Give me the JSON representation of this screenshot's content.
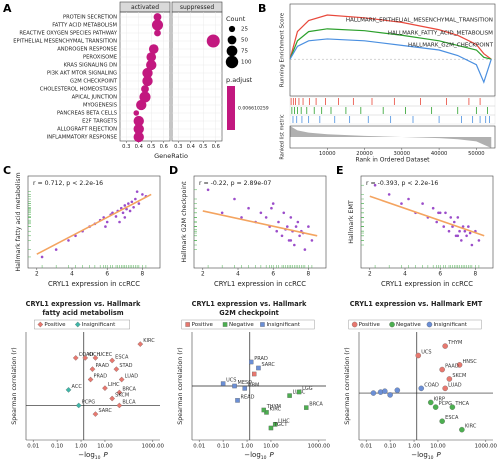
{
  "chart_data": [
    {
      "type": "dot",
      "panel": "A",
      "categories": [
        "PROTEIN SECRETION",
        "FATTY ACID METABOLISM",
        "REACTIVE OXYGEN SPECIES PATHWAY",
        "EPITHELIAL MESENCHYMAL TRANSITION",
        "ANDROGEN RESPONSE",
        "PEROXISOME",
        "KRAS SIGNALING DN",
        "PI3K AKT MTOR SIGNALING",
        "G2M CHECKPOINT",
        "CHOLESTEROL HOMEOSTASIS",
        "APICAL JUNCTION",
        "MYOGENESIS",
        "PANCREAS BETA CELLS",
        "E2F TARGETS",
        "ALLOGRAFT REJECTION",
        "INFLAMMATORY RESPONSE"
      ],
      "series": [
        {
          "name": "activated",
          "values": [
            0.55,
            0.55,
            0.55,
            null,
            0.52,
            0.5,
            0.5,
            0.47,
            0.47,
            0.45,
            0.45,
            0.42,
            0.38,
            0.4,
            0.4,
            0.4
          ],
          "counts": [
            40,
            80,
            30,
            null,
            60,
            60,
            70,
            70,
            70,
            40,
            80,
            70,
            20,
            70,
            70,
            70
          ]
        },
        {
          "name": "suppressed",
          "values": [
            null,
            null,
            null,
            0.58,
            null,
            null,
            null,
            null,
            null,
            null,
            null,
            null,
            null,
            null,
            null,
            null
          ],
          "counts": [
            null,
            null,
            null,
            110,
            null,
            null,
            null,
            null,
            null,
            null,
            null,
            null,
            null,
            null,
            null,
            null
          ]
        }
      ],
      "color": "#c2187f",
      "xlabel": "GeneRatio",
      "xlim": [
        0.25,
        0.65
      ],
      "xticks": [
        0.3,
        0.4,
        0.5,
        0.6
      ],
      "size_legend": {
        "title": "Count",
        "values": [
          25,
          50,
          75,
          100
        ]
      },
      "color_legend": {
        "title": "p.adjust",
        "values": [
          0.006610259
        ]
      }
    },
    {
      "type": "gsea",
      "panel": "B",
      "ylabel": "Running Enrichment Score",
      "ylabel2": "Ranked list metric",
      "xlabel": "Rank in Ordered Dataset",
      "x": [
        0,
        2000,
        5000,
        10000,
        20000,
        30000,
        40000,
        45000,
        50000,
        52000,
        54000
      ],
      "xlim": [
        0,
        55000
      ],
      "xticks": [
        10000,
        20000,
        30000,
        40000,
        50000
      ],
      "ylim": [
        -0.4,
        0.6
      ],
      "series": [
        {
          "name": "HALLMARK_EPITHELIAL_MESENCHYMAL_TRANSITION",
          "color": "#e8483b",
          "values": [
            0,
            0.3,
            0.42,
            0.48,
            0.45,
            0.4,
            0.32,
            0.26,
            0.16,
            0.06,
            0
          ],
          "hits": [
            300,
            900,
            1500,
            2400,
            3500,
            5200,
            7000,
            9500,
            13000,
            17000,
            22000,
            28000,
            35000,
            42000,
            48000,
            51000
          ]
        },
        {
          "name": "HALLMARK_FATTY_ACID_METABOLISM",
          "color": "#2ca02c",
          "values": [
            0,
            0.2,
            0.3,
            0.33,
            0.31,
            0.26,
            0.2,
            0.15,
            0.1,
            0.02,
            0
          ],
          "hits": [
            500,
            1200,
            2000,
            3000,
            4500,
            6500,
            8500,
            11000,
            15000,
            19000,
            25000,
            31000,
            38000,
            45000,
            50000,
            53000
          ]
        },
        {
          "name": "HALLMARK_G2M_CHECKPOINT",
          "color": "#4a8fe0",
          "values": [
            0,
            0.14,
            0.2,
            0.22,
            0.2,
            0.15,
            0.1,
            0.04,
            -0.06,
            -0.25,
            0
          ],
          "hits": [
            800,
            1800,
            3200,
            5000,
            8000,
            12000,
            16000,
            21000,
            27000,
            33000,
            40000,
            46000,
            49000,
            51000,
            52500,
            53500
          ]
        }
      ],
      "metric": [
        1,
        0.6,
        0.4,
        0.25,
        0.1,
        0,
        -0.1,
        -0.2,
        -0.4,
        -0.7,
        -1
      ],
      "metric_ylim": [
        -1,
        1
      ],
      "metric_color": "#b0b0b0"
    },
    {
      "type": "scatter",
      "panel": "C",
      "annotation": "r = 0.712, p < 2.2e-16",
      "xlabel": "CRYL1 expression in ccRCC",
      "ylabel": "Hallmark fatty acid metabolism",
      "x": [
        2.3,
        3.1,
        3.8,
        4.2,
        4.6,
        5.0,
        5.3,
        5.6,
        5.8,
        6.0,
        6.2,
        6.3,
        6.5,
        6.6,
        6.8,
        6.9,
        7.0,
        7.1,
        7.2,
        7.3,
        7.4,
        7.5,
        7.6,
        7.8,
        8.0,
        8.2,
        5.9,
        6.7,
        7.0,
        7.7
      ],
      "values": [
        -0.38,
        -0.3,
        -0.2,
        -0.15,
        -0.1,
        -0.05,
        -0.02,
        0.02,
        0.05,
        0.0,
        0.08,
        0.1,
        0.06,
        0.12,
        0.15,
        0.1,
        0.18,
        0.14,
        0.2,
        0.12,
        0.22,
        0.16,
        0.25,
        0.2,
        0.3,
        0.28,
        -0.05,
        0.0,
        0.05,
        0.33
      ],
      "color": "#9b4dca",
      "fit_x": [
        2,
        8.5
      ],
      "fit_values": [
        -0.35,
        0.3
      ],
      "fit_color": "#f4a460",
      "rug_color": "#4caf50",
      "xlim": [
        1.5,
        9
      ],
      "xticks": [
        2,
        4,
        6,
        8
      ],
      "ylim": [
        -0.5,
        0.5
      ]
    },
    {
      "type": "scatter",
      "panel": "D",
      "annotation": "r = -0.22, p = 2.89e-07",
      "xlabel": "CRYL1 expression in ccRCC",
      "ylabel": "Hallmark G2M checkpoint",
      "x": [
        2.3,
        3.1,
        3.8,
        4.2,
        4.6,
        5.0,
        5.3,
        5.6,
        5.8,
        6.0,
        6.2,
        6.3,
        6.5,
        6.6,
        6.8,
        6.9,
        7.0,
        7.1,
        7.2,
        7.3,
        7.4,
        7.5,
        7.6,
        7.8,
        8.0,
        8.2,
        5.9,
        6.7,
        7.0,
        7.7
      ],
      "values": [
        0.35,
        0.1,
        0.25,
        0.05,
        0.15,
        0.0,
        0.1,
        0.05,
        -0.05,
        0.2,
        -0.1,
        0.0,
        -0.15,
        0.1,
        -0.05,
        -0.2,
        0.05,
        -0.1,
        -0.25,
        -0.05,
        0.0,
        -0.15,
        -0.1,
        -0.3,
        -0.05,
        -0.2,
        0.15,
        -0.08,
        -0.2,
        -0.12
      ],
      "color": "#9b4dca",
      "fit_x": [
        2,
        8.5
      ],
      "fit_values": [
        0.12,
        -0.15
      ],
      "fit_color": "#f4a460",
      "rug_color": "#4caf50",
      "xlim": [
        1.5,
        9
      ],
      "xticks": [
        2,
        4,
        6,
        8
      ],
      "ylim": [
        -0.5,
        0.5
      ]
    },
    {
      "type": "scatter",
      "panel": "E",
      "annotation": "r = -0.393, p < 2.2e-16",
      "xlabel": "CRYL1 expression in ccRCC",
      "ylabel": "Hallmark EMT",
      "x": [
        2.3,
        3.1,
        3.8,
        4.2,
        4.6,
        5.0,
        5.3,
        5.6,
        5.8,
        6.0,
        6.2,
        6.3,
        6.5,
        6.6,
        6.8,
        6.9,
        7.0,
        7.1,
        7.2,
        7.3,
        7.4,
        7.5,
        7.6,
        7.8,
        8.0,
        8.2,
        5.9,
        6.7,
        7.0,
        7.7
      ],
      "values": [
        0.4,
        0.3,
        0.2,
        0.25,
        0.1,
        0.2,
        0.05,
        0.15,
        0.0,
        0.1,
        -0.05,
        0.1,
        -0.1,
        0.05,
        0.0,
        -0.15,
        0.05,
        -0.1,
        -0.2,
        -0.05,
        -0.1,
        -0.15,
        -0.05,
        -0.25,
        -0.1,
        -0.2,
        0.1,
        -0.05,
        -0.15,
        -0.12
      ],
      "color": "#9b4dca",
      "fit_x": [
        2,
        8.5
      ],
      "fit_values": [
        0.28,
        -0.15
      ],
      "fit_color": "#f4a460",
      "rug_color": "#4caf50",
      "xlim": [
        1.5,
        9
      ],
      "xticks": [
        2,
        4,
        6,
        8
      ],
      "ylim": [
        -0.5,
        0.5
      ]
    },
    {
      "type": "correlation",
      "title": [
        "CRYL1 expression vs. Hallmark",
        "fatty acid metabolism"
      ],
      "ylabel": "Spearman correlation (r)",
      "xlabel": [
        "−log",
        "10",
        "P"
      ],
      "marker": "diamond",
      "xlog": true,
      "xlim": [
        0.005,
        2000
      ],
      "xticks": [
        0.01,
        {
          "value": 0.1,
          "label": "0.10"
        },
        {
          "value": 1,
          "label": "1.00"
        },
        {
          "value": 10,
          "label": "10.00"
        },
        {
          "value": 1000,
          "label": "1000.00"
        }
      ],
      "ylim": [
        -0.4,
        0.85
      ],
      "vline": 1.3,
      "series": [
        {
          "name": "Positive",
          "color": "#e8786f",
          "labels": [
            "COAD",
            "KICH",
            "UCEC",
            "ESCA",
            "KIRC",
            "PAAD",
            "STAD",
            "LUAD",
            "PRAD",
            "LIHC",
            "BRCA",
            "SKCM",
            "BLCA",
            "SARC"
          ],
          "x": [
            0.6,
            1.5,
            4,
            20,
            300,
            3,
            30,
            50,
            2.5,
            10,
            40,
            20,
            40,
            4
          ],
          "values": [
            0.55,
            0.55,
            0.55,
            0.52,
            0.71,
            0.42,
            0.42,
            0.3,
            0.3,
            0.2,
            0.15,
            0.08,
            0.0,
            -0.1
          ]
        },
        {
          "name": "Insignificant",
          "color": "#3fb6a8",
          "labels": [
            "ACC",
            "PCPG"
          ],
          "x": [
            0.3,
            0.8
          ],
          "values": [
            0.18,
            0.0
          ]
        }
      ]
    },
    {
      "type": "correlation",
      "title": [
        "CRYL1 expression vs. Hallmark",
        "G2M checkpoint"
      ],
      "ylabel": "Spearman correlation (r)",
      "xlabel": [
        "−log",
        "10",
        "P"
      ],
      "marker": "square",
      "xlog": true,
      "xlim": [
        0.005,
        2000
      ],
      "xticks": [
        0.01,
        {
          "value": 0.1,
          "label": "0.10"
        },
        {
          "value": 1,
          "label": "1.00"
        },
        {
          "value": 10,
          "label": "10.00"
        },
        {
          "value": 1000,
          "label": "1000.00"
        }
      ],
      "ylim": [
        -0.45,
        0.45
      ],
      "vline": 1.3,
      "series": [
        {
          "name": "Positive",
          "color": "#e8786f",
          "labels": [
            null
          ],
          "x": [
            2
          ],
          "values": [
            0.1
          ]
        },
        {
          "name": "Negative",
          "color": "#4caf50",
          "labels": [
            "KIRC",
            "LUSC",
            "LGG",
            "BRCA",
            "LIHC",
            "TGCT",
            "THYM"
          ],
          "x": [
            6.5,
            60,
            150,
            300,
            15,
            10,
            5
          ],
          "values": [
            -0.22,
            -0.08,
            -0.05,
            -0.18,
            -0.32,
            -0.35,
            -0.2
          ]
        },
        {
          "name": "Insignificant",
          "color": "#6b8fd6",
          "labels": [
            "PRAD",
            "SARC",
            "MESO",
            "GBM",
            "READ",
            "UCS"
          ],
          "x": [
            1.5,
            3,
            0.3,
            0.8,
            0.4,
            0.1
          ],
          "values": [
            0.2,
            0.15,
            0.0,
            -0.02,
            -0.12,
            0.02
          ]
        }
      ]
    },
    {
      "type": "correlation",
      "title": [
        "CRYL1 expression vs. Hallmark EMT"
      ],
      "ylabel": "Spearman correlation (r)",
      "xlabel": [
        "−log",
        "10",
        "P"
      ],
      "marker": "circle",
      "xlog": true,
      "xlim": [
        0.005,
        2000
      ],
      "xticks": [
        0.01,
        {
          "value": 0.1,
          "label": "0.10"
        },
        {
          "value": 1,
          "label": "1.00"
        },
        {
          "value": 10,
          "label": "10.00"
        },
        {
          "value": 1000,
          "label": "1000.00"
        }
      ],
      "ylim": [
        -0.5,
        0.65
      ],
      "vline": 1.3,
      "series": [
        {
          "name": "Positive",
          "color": "#e8786f",
          "labels": [
            "THYM",
            "UCS",
            "HNSC",
            "PAAD",
            "SKCM",
            "LUAD"
          ],
          "x": [
            20,
            1.5,
            80,
            15,
            30,
            20
          ],
          "values": [
            0.5,
            0.4,
            0.3,
            0.25,
            0.15,
            0.05
          ]
        },
        {
          "name": "Negative",
          "color": "#4caf50",
          "labels": [
            "KIRP",
            "PCPG",
            "THCA",
            "ESCA",
            "KIRC"
          ],
          "x": [
            5,
            8,
            40,
            15,
            100
          ],
          "values": [
            -0.1,
            -0.15,
            -0.15,
            -0.3,
            -0.39
          ]
        },
        {
          "name": "Insignificant",
          "color": "#6b8fd6",
          "labels": [
            null,
            null,
            null,
            null,
            null,
            "COAD"
          ],
          "x": [
            0.02,
            0.04,
            0.06,
            0.1,
            0.2,
            2
          ],
          "values": [
            0,
            0.01,
            0.02,
            -0.02,
            0.03,
            0.05
          ]
        }
      ]
    }
  ]
}
